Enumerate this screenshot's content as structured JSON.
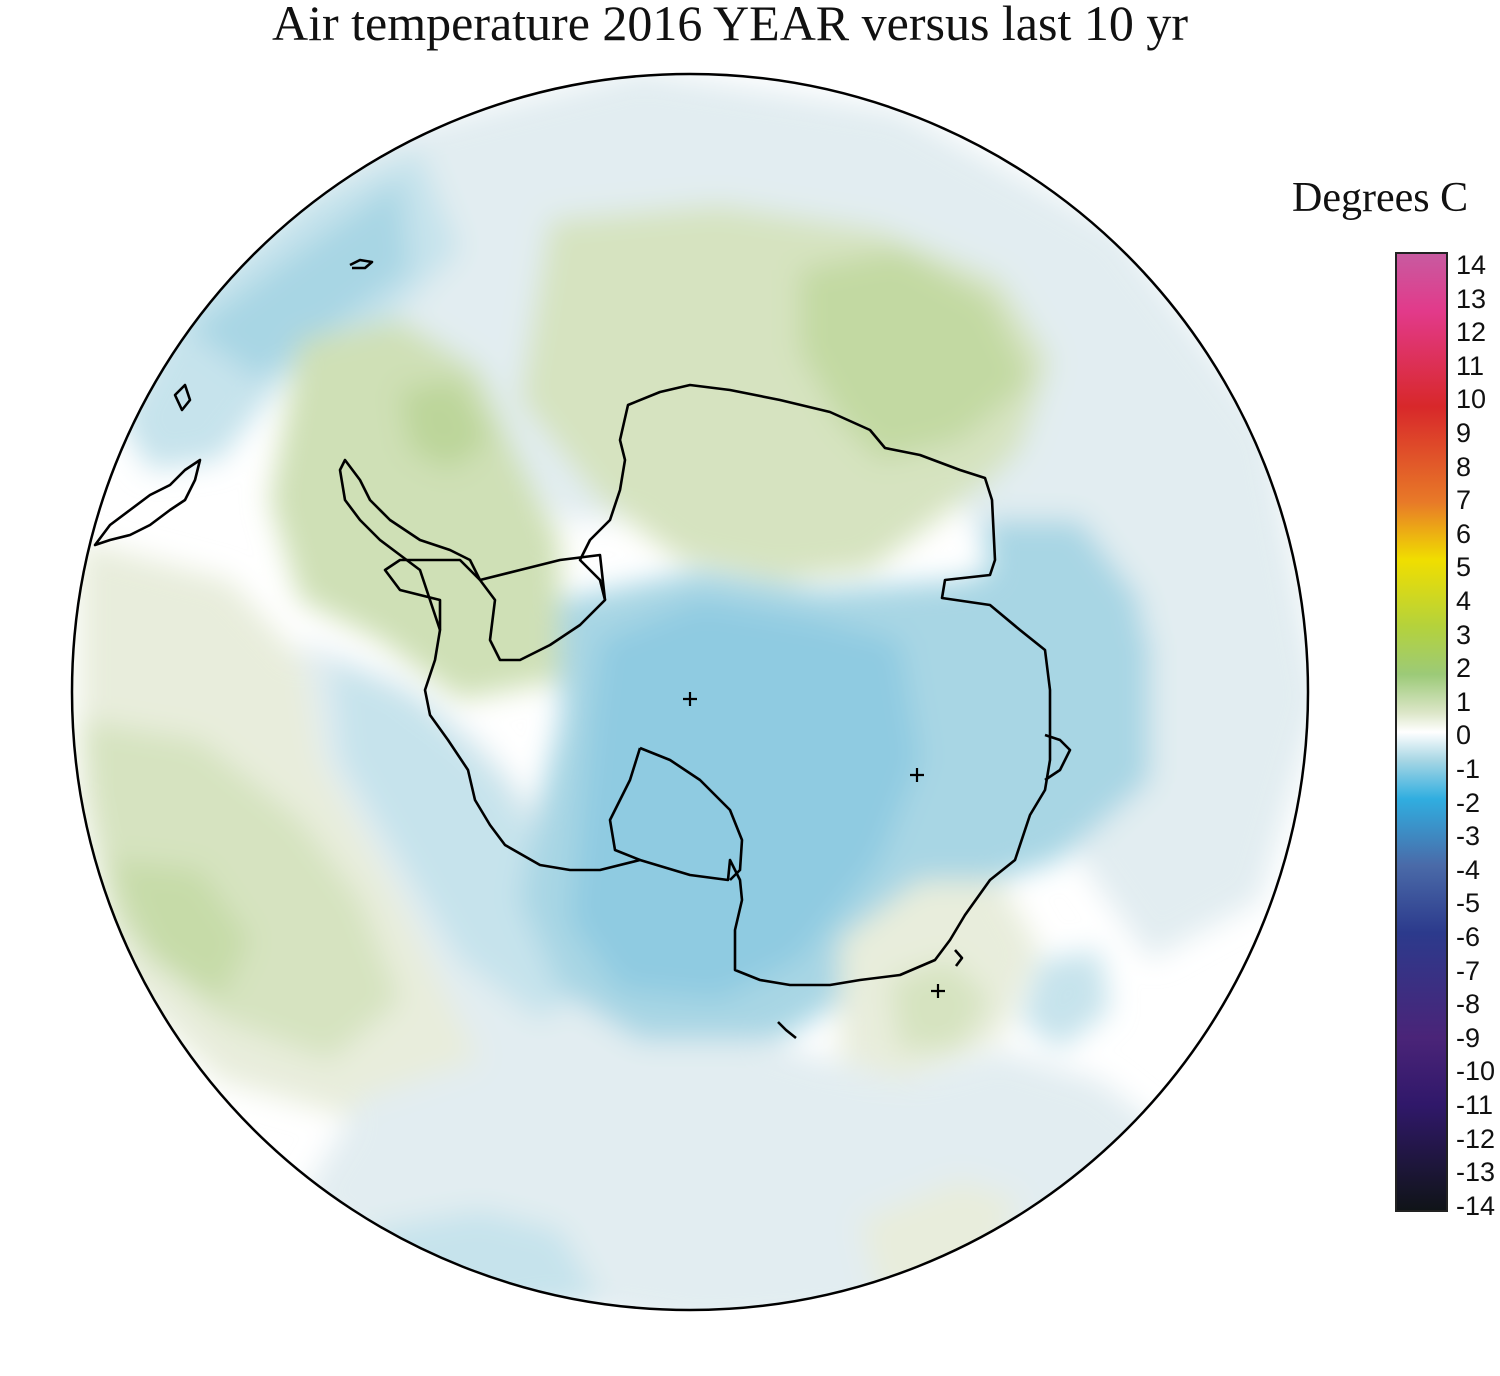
{
  "title": "Air temperature 2016 YEAR versus last 10 yr",
  "legend": {
    "units": "Degrees C",
    "ticks": [
      "14",
      "13",
      "12",
      "11",
      "10",
      "9",
      "8",
      "7",
      "6",
      "5",
      "4",
      "3",
      "2",
      "1",
      "0",
      "-1",
      "-2",
      "-3",
      "-4",
      "-5",
      "-6",
      "-7",
      "-8",
      "-9",
      "-10",
      "-11",
      "-12",
      "-13",
      "-14"
    ],
    "range": [
      -14,
      14
    ],
    "colors": {
      "max": "#c85aa0",
      "13": "#e23a8a",
      "10": "#d8282a",
      "7": "#e87a28",
      "5": "#f0de00",
      "3": "#b4d23c",
      "1.5": "#9cca78",
      "0.5": "#dce6c8",
      "0": "#ffffff",
      "-1": "#a6d6e4",
      "-2": "#30aee0",
      "-4": "#4a6aa8",
      "-6": "#2c3a8c",
      "-9": "#4a2478",
      "-11": "#30186a",
      "min": "#101418"
    }
  },
  "map": {
    "projection": "south-polar-stereographic",
    "region": "Antarctica and Southern Ocean",
    "fill_colors": {
      "very_light_green": "#e8eddc",
      "light_green": "#d6e3c0",
      "green": "#c2d9a2",
      "very_light_blue": "#e2edf1",
      "light_blue": "#c6e3ec",
      "blue": "#9dd1e3",
      "deep_blue": "#88c8e0"
    },
    "coastline_color": "#000000",
    "station_markers": 3
  }
}
